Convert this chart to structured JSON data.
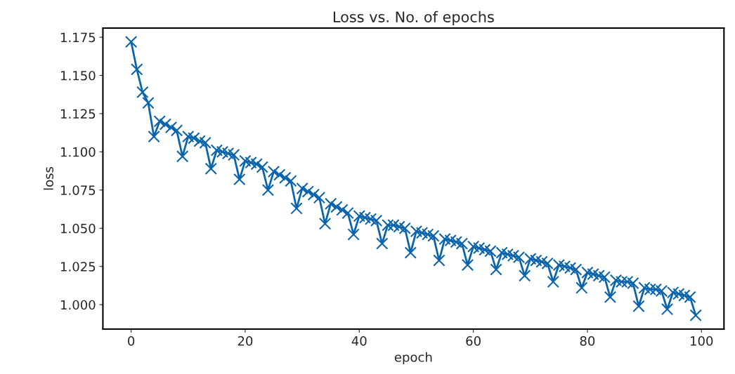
{
  "chart_data": {
    "type": "line",
    "title": "Loss vs. No. of epochs",
    "xlabel": "epoch",
    "ylabel": "loss",
    "x": [
      0,
      1,
      2,
      3,
      4,
      5,
      6,
      7,
      8,
      9,
      10,
      11,
      12,
      13,
      14,
      15,
      16,
      17,
      18,
      19,
      20,
      21,
      22,
      23,
      24,
      25,
      26,
      27,
      28,
      29,
      30,
      31,
      32,
      33,
      34,
      35,
      36,
      37,
      38,
      39,
      40,
      41,
      42,
      43,
      44,
      45,
      46,
      47,
      48,
      49,
      50,
      51,
      52,
      53,
      54,
      55,
      56,
      57,
      58,
      59,
      60,
      61,
      62,
      63,
      64,
      65,
      66,
      67,
      68,
      69,
      70,
      71,
      72,
      73,
      74,
      75,
      76,
      77,
      78,
      79,
      80,
      81,
      82,
      83,
      84,
      85,
      86,
      87,
      88,
      89,
      90,
      91,
      92,
      93,
      94,
      95,
      96,
      97,
      98,
      99
    ],
    "series": [
      {
        "color": "#0a64ad",
        "values": [
          1.172,
          1.154,
          1.139,
          1.132,
          1.11,
          1.12,
          1.118,
          1.116,
          1.114,
          1.097,
          1.11,
          1.109,
          1.107,
          1.106,
          1.089,
          1.101,
          1.1,
          1.099,
          1.098,
          1.082,
          1.094,
          1.093,
          1.092,
          1.09,
          1.075,
          1.087,
          1.085,
          1.083,
          1.081,
          1.063,
          1.076,
          1.074,
          1.072,
          1.07,
          1.053,
          1.066,
          1.064,
          1.062,
          1.06,
          1.046,
          1.058,
          1.057,
          1.056,
          1.055,
          1.04,
          1.052,
          1.052,
          1.051,
          1.05,
          1.034,
          1.048,
          1.047,
          1.046,
          1.045,
          1.029,
          1.043,
          1.042,
          1.041,
          1.04,
          1.026,
          1.038,
          1.037,
          1.036,
          1.035,
          1.023,
          1.034,
          1.033,
          1.032,
          1.031,
          1.019,
          1.03,
          1.029,
          1.028,
          1.027,
          1.015,
          1.026,
          1.025,
          1.024,
          1.023,
          1.011,
          1.021,
          1.02,
          1.019,
          1.018,
          1.005,
          1.016,
          1.015,
          1.015,
          1.014,
          0.999,
          1.011,
          1.01,
          1.01,
          1.009,
          0.997,
          1.008,
          1.007,
          1.006,
          1.005,
          0.993
        ]
      }
    ],
    "xlim": [
      -4.95,
      103.95
    ],
    "ylim": [
      0.984,
      1.181
    ],
    "xticks": [
      0,
      20,
      40,
      60,
      80,
      100
    ],
    "yticks": [
      {
        "value": 1.0,
        "label": "1.000"
      },
      {
        "value": 1.025,
        "label": "1.025"
      },
      {
        "value": 1.05,
        "label": "1.050"
      },
      {
        "value": 1.075,
        "label": "1.075"
      },
      {
        "value": 1.1,
        "label": "1.100"
      },
      {
        "value": 1.125,
        "label": "1.125"
      },
      {
        "value": 1.15,
        "label": "1.150"
      },
      {
        "value": 1.175,
        "label": "1.175"
      }
    ],
    "marker": "cross",
    "line_style": "solid",
    "grid": false
  }
}
